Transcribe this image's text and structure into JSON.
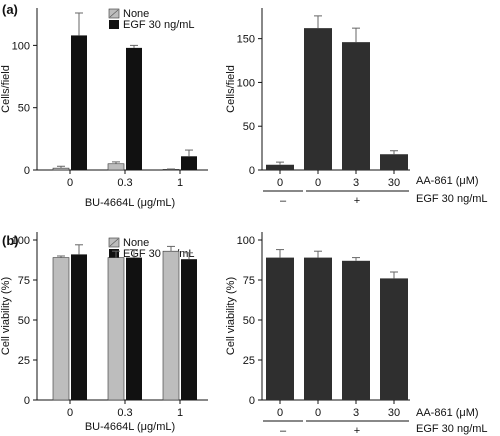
{
  "panel_labels": {
    "a": "(a)",
    "b": "(b)"
  },
  "legend": {
    "none": "None",
    "egf": "EGF 30 ng/mL"
  },
  "colors": {
    "none_fill": "#bdbdbd",
    "egf_fill": "#111111",
    "single_fill": "#2f2f2f"
  },
  "x_labels": {
    "bu": "BU-4664L (μg/mL)",
    "aa": "AA-861 (μM)",
    "egf_row": "EGF 30 ng/mL",
    "minus": "–",
    "plus": "+"
  },
  "chart_data": [
    {
      "id": "a-left",
      "type": "bar",
      "categories": [
        "0",
        "0.3",
        "1"
      ],
      "ylabel": "Cells/field",
      "ylim": [
        0,
        130
      ],
      "yticks": [
        0,
        50,
        100
      ],
      "xlabel": "BU-4664L (μg/mL)",
      "legend": "top-right",
      "series": [
        {
          "name": "None",
          "values": [
            1.5,
            5,
            0.5
          ],
          "errors": [
            1.5,
            1.5,
            0.3
          ]
        },
        {
          "name": "EGF 30 ng/mL",
          "values": [
            108,
            98,
            11
          ],
          "errors": [
            18,
            2,
            5
          ]
        }
      ]
    },
    {
      "id": "a-right",
      "type": "bar",
      "categories": [
        "0",
        "0",
        "3",
        "30"
      ],
      "ylabel": "Cells/field",
      "ylim": [
        0,
        185
      ],
      "yticks": [
        0,
        50,
        100,
        150
      ],
      "series": [
        {
          "values": [
            6,
            162,
            146,
            18
          ],
          "errors": [
            3,
            14,
            16,
            4
          ]
        }
      ]
    },
    {
      "id": "b-left",
      "type": "bar",
      "categories": [
        "0",
        "0.3",
        "1"
      ],
      "ylabel": "Cell viability (%)",
      "ylim": [
        0,
        105
      ],
      "yticks": [
        0,
        25,
        50,
        75,
        100
      ],
      "xlabel": "BU-4664L (μg/mL)",
      "legend": "top-right",
      "series": [
        {
          "name": "None",
          "values": [
            89,
            89,
            93
          ],
          "errors": [
            1,
            4,
            3
          ]
        },
        {
          "name": "EGF 30 ng/mL",
          "values": [
            91,
            89,
            88
          ],
          "errors": [
            6,
            5,
            4
          ]
        }
      ]
    },
    {
      "id": "b-right",
      "type": "bar",
      "categories": [
        "0",
        "0",
        "3",
        "30"
      ],
      "ylabel": "Cell viability (%)",
      "ylim": [
        0,
        105
      ],
      "yticks": [
        0,
        25,
        50,
        75,
        100
      ],
      "series": [
        {
          "values": [
            89,
            89,
            87,
            76
          ],
          "errors": [
            5,
            4,
            2,
            4
          ]
        }
      ]
    }
  ]
}
